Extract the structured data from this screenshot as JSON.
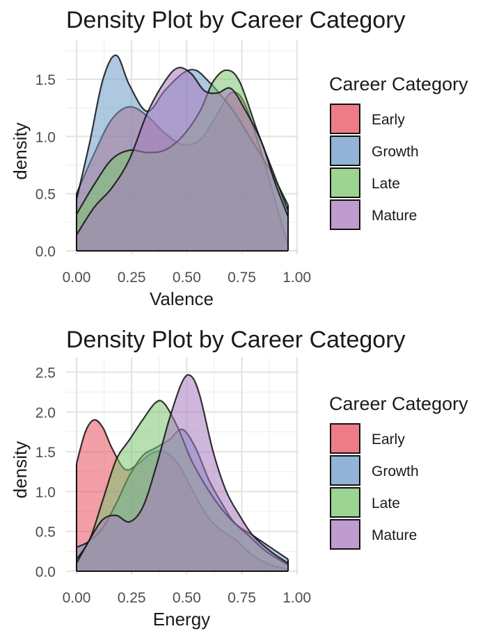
{
  "colors": {
    "Early": "#e8505f",
    "Growth": "#6d9ac8",
    "Late": "#7cc46f",
    "Mature": "#a87bbf"
  },
  "chart_data": [
    {
      "type": "area",
      "title": "Density Plot by Career Category",
      "xlabel": "Valence",
      "ylabel": "density",
      "xlim": [
        0,
        0.96
      ],
      "ylim": [
        0,
        1.78
      ],
      "x_ticks": [
        0,
        0.25,
        0.5,
        0.75,
        1.0
      ],
      "x_tick_labels": [
        "0.00",
        "0.25",
        "0.50",
        "0.75",
        "1.00"
      ],
      "y_ticks": [
        0,
        0.5,
        1.0,
        1.5
      ],
      "y_tick_labels": [
        "0.0",
        "0.5",
        "1.0",
        "1.5"
      ],
      "grid": true,
      "legend": {
        "title": "Career Category",
        "position": "right"
      },
      "series": [
        {
          "name": "Early",
          "x": [
            0.0,
            0.08,
            0.16,
            0.24,
            0.32,
            0.4,
            0.48,
            0.56,
            0.64,
            0.7,
            0.76,
            0.84,
            0.9,
            0.96
          ],
          "y": [
            0.5,
            0.85,
            1.15,
            1.26,
            1.18,
            1.03,
            0.93,
            0.97,
            1.2,
            1.38,
            1.3,
            0.85,
            0.45,
            0.05
          ]
        },
        {
          "name": "Growth",
          "x": [
            0.0,
            0.06,
            0.12,
            0.18,
            0.24,
            0.32,
            0.4,
            0.48,
            0.54,
            0.6,
            0.66,
            0.72,
            0.8,
            0.88,
            0.96
          ],
          "y": [
            0.45,
            0.95,
            1.5,
            1.71,
            1.45,
            1.22,
            1.4,
            1.55,
            1.58,
            1.48,
            1.35,
            1.2,
            0.95,
            0.7,
            0.4
          ]
        },
        {
          "name": "Late",
          "x": [
            0.0,
            0.08,
            0.16,
            0.24,
            0.32,
            0.4,
            0.48,
            0.56,
            0.62,
            0.68,
            0.74,
            0.82,
            0.9,
            0.96
          ],
          "y": [
            0.32,
            0.58,
            0.8,
            0.88,
            0.86,
            0.88,
            1.0,
            1.22,
            1.48,
            1.58,
            1.48,
            1.05,
            0.65,
            0.35
          ]
        },
        {
          "name": "Mature",
          "x": [
            0.0,
            0.08,
            0.16,
            0.24,
            0.32,
            0.4,
            0.46,
            0.52,
            0.58,
            0.64,
            0.7,
            0.76,
            0.84,
            0.9,
            0.96
          ],
          "y": [
            0.14,
            0.38,
            0.55,
            0.8,
            1.2,
            1.48,
            1.6,
            1.55,
            1.4,
            1.38,
            1.42,
            1.25,
            0.95,
            0.6,
            0.3
          ]
        }
      ]
    },
    {
      "type": "area",
      "title": "Density Plot by Career Category",
      "xlabel": "Energy",
      "ylabel": "density",
      "xlim": [
        0,
        0.96
      ],
      "ylim": [
        0,
        2.6
      ],
      "x_ticks": [
        0,
        0.25,
        0.5,
        0.75,
        1.0
      ],
      "x_tick_labels": [
        "0.00",
        "0.25",
        "0.50",
        "0.75",
        "1.00"
      ],
      "y_ticks": [
        0,
        0.5,
        1.0,
        1.5,
        2.0,
        2.5
      ],
      "y_tick_labels": [
        "0.0",
        "0.5",
        "1.0",
        "1.5",
        "2.0",
        "2.5"
      ],
      "grid": true,
      "legend": {
        "title": "Career Category",
        "position": "right"
      },
      "series": [
        {
          "name": "Early",
          "x": [
            0.0,
            0.04,
            0.08,
            0.12,
            0.16,
            0.22,
            0.28,
            0.34,
            0.4,
            0.46,
            0.52,
            0.58,
            0.64,
            0.72,
            0.8,
            0.88,
            0.96
          ],
          "y": [
            1.35,
            1.75,
            1.9,
            1.8,
            1.55,
            1.28,
            1.35,
            1.48,
            1.5,
            1.35,
            1.05,
            0.75,
            0.55,
            0.4,
            0.2,
            0.08,
            0.02
          ]
        },
        {
          "name": "Growth",
          "x": [
            0.0,
            0.06,
            0.12,
            0.18,
            0.24,
            0.3,
            0.36,
            0.42,
            0.48,
            0.54,
            0.6,
            0.66,
            0.72,
            0.8,
            0.88,
            0.96
          ],
          "y": [
            0.3,
            0.38,
            0.55,
            0.85,
            1.2,
            1.45,
            1.55,
            1.65,
            1.78,
            1.55,
            1.15,
            0.85,
            0.6,
            0.45,
            0.3,
            0.15
          ]
        },
        {
          "name": "Late",
          "x": [
            0.0,
            0.06,
            0.12,
            0.18,
            0.24,
            0.3,
            0.36,
            0.4,
            0.46,
            0.52,
            0.58,
            0.64,
            0.7,
            0.78,
            0.86,
            0.96
          ],
          "y": [
            0.15,
            0.4,
            0.9,
            1.4,
            1.65,
            1.9,
            2.12,
            2.1,
            1.8,
            1.4,
            1.1,
            0.85,
            0.65,
            0.45,
            0.25,
            0.08
          ]
        },
        {
          "name": "Mature",
          "x": [
            0.0,
            0.06,
            0.12,
            0.18,
            0.24,
            0.3,
            0.36,
            0.42,
            0.48,
            0.52,
            0.56,
            0.62,
            0.68,
            0.74,
            0.8,
            0.88,
            0.96
          ],
          "y": [
            0.1,
            0.4,
            0.65,
            0.7,
            0.62,
            0.8,
            1.3,
            1.9,
            2.38,
            2.45,
            2.2,
            1.5,
            1.0,
            0.7,
            0.45,
            0.25,
            0.1
          ]
        }
      ]
    }
  ]
}
